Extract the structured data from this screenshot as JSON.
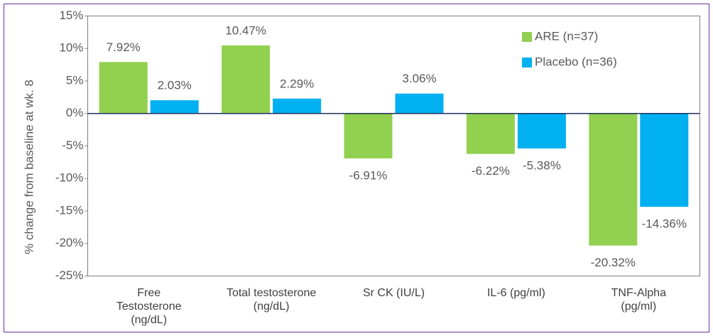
{
  "chart_data": {
    "type": "bar",
    "y_label": "% change from baseline at wk. 8",
    "categories": [
      "Free\nTestosterone\n(ng/dL)",
      "Total testosterone\n(ng/dL)",
      "Sr CK (IU/L)",
      "IL-6 (pg/ml)",
      "TNF-Alpha\n(pg/ml)"
    ],
    "series": [
      {
        "name": "ARE (n=37)",
        "color": "#92d050",
        "values": [
          7.92,
          10.47,
          -6.91,
          -6.22,
          -20.32
        ],
        "value_labels": [
          "7.92%",
          "10.47%",
          "-6.91%",
          "-6.22%",
          "-20.32%"
        ]
      },
      {
        "name": "Placebo (n=36)",
        "color": "#00b0f0",
        "values": [
          2.03,
          2.29,
          3.06,
          -5.38,
          -14.36
        ],
        "value_labels": [
          "2.03%",
          "2.29%",
          "3.06%",
          "-5.38%",
          "-14.36%"
        ]
      }
    ],
    "ylim": [
      -25,
      15
    ],
    "yticks": [
      {
        "value": -25,
        "label": "-25%"
      },
      {
        "value": -20,
        "label": "-20%"
      },
      {
        "value": -15,
        "label": "-15%"
      },
      {
        "value": -10,
        "label": "-10%"
      },
      {
        "value": -5,
        "label": "-5%"
      },
      {
        "value": 0,
        "label": "0%"
      },
      {
        "value": 5,
        "label": "5%"
      },
      {
        "value": 10,
        "label": "10%"
      },
      {
        "value": 15,
        "label": "15%"
      }
    ],
    "legend": "upper right"
  }
}
